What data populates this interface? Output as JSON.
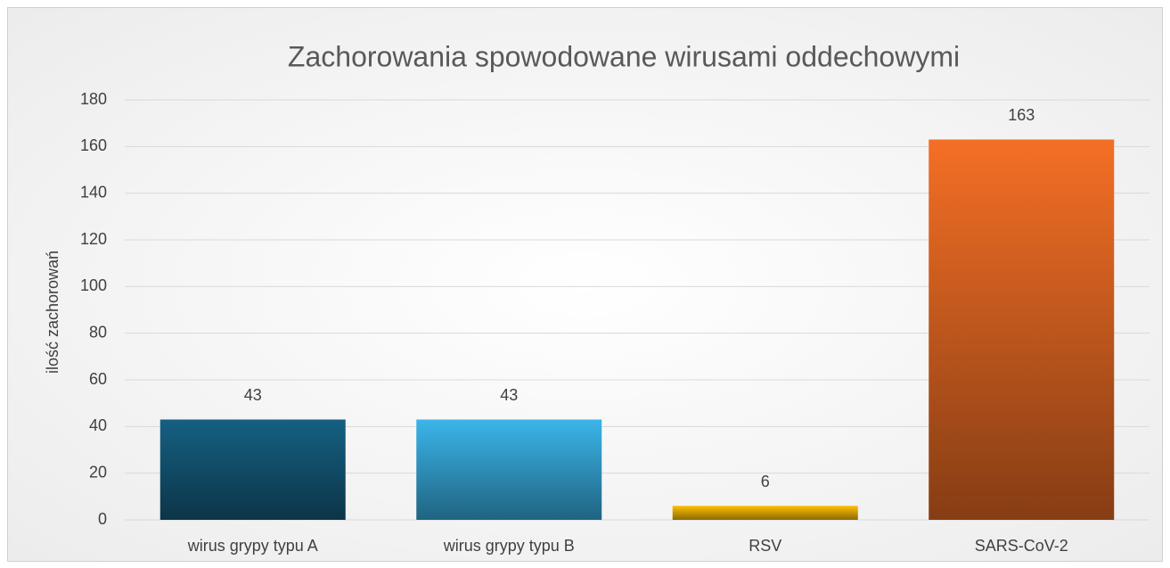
{
  "chart_data": {
    "type": "bar",
    "title": "Zachorowania spowodowane wirusami oddechowymi",
    "y_label": "ilość zachorowań",
    "categories": [
      "wirus grypy typu A",
      "wirus grypy typu B",
      "RSV",
      "SARS-CoV-2"
    ],
    "values": [
      43,
      43,
      6,
      163
    ],
    "colors": [
      "#156082",
      "#3BB5EA",
      "#FFC000",
      "#F46F25"
    ],
    "ylim": [
      0,
      180
    ],
    "yticks": [
      0,
      20,
      40,
      60,
      80,
      100,
      120,
      140,
      160,
      180
    ],
    "grid": true
  }
}
